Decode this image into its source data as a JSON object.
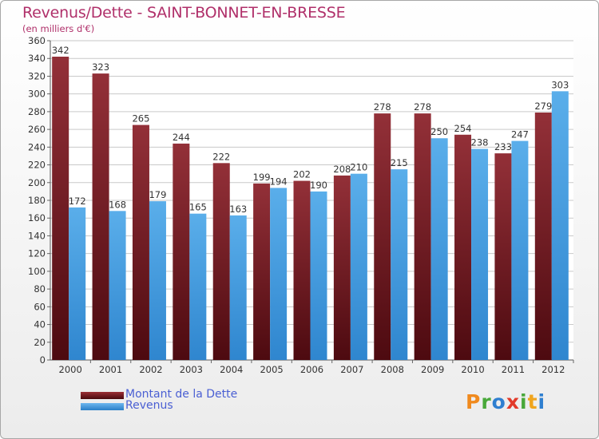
{
  "title": "Revenus/Dette - SAINT-BONNET-EN-BRESSE",
  "subtitle": "(en milliers d'€)",
  "chart_data": {
    "type": "bar",
    "categories": [
      "2000",
      "2001",
      "2002",
      "2003",
      "2004",
      "2005",
      "2006",
      "2007",
      "2008",
      "2009",
      "2010",
      "2011",
      "2012"
    ],
    "series": [
      {
        "name": "Montant de la Dette",
        "values": [
          342,
          323,
          265,
          244,
          222,
          199,
          202,
          208,
          278,
          278,
          254,
          233,
          279
        ],
        "color": "#7a1e24"
      },
      {
        "name": "Revenus",
        "values": [
          172,
          168,
          179,
          165,
          163,
          194,
          190,
          210,
          215,
          250,
          238,
          247,
          303
        ],
        "color": "#3c95dc"
      }
    ],
    "ylim": [
      0,
      360
    ],
    "yticks": [
      0,
      20,
      40,
      60,
      80,
      100,
      120,
      140,
      160,
      180,
      200,
      220,
      240,
      260,
      280,
      300,
      320,
      340,
      360
    ],
    "grid": true,
    "legend_position": "bottom-left"
  },
  "logo": {
    "letters": [
      {
        "ch": "P",
        "color": "#f08a1e"
      },
      {
        "ch": "r",
        "color": "#49a83a"
      },
      {
        "ch": "o",
        "color": "#2f7fd0"
      },
      {
        "ch": "x",
        "color": "#e23a2a"
      },
      {
        "ch": "i",
        "color": "#49a83a"
      },
      {
        "ch": "t",
        "color": "#f0a51e"
      },
      {
        "ch": "i",
        "color": "#2f7fd0"
      }
    ]
  }
}
